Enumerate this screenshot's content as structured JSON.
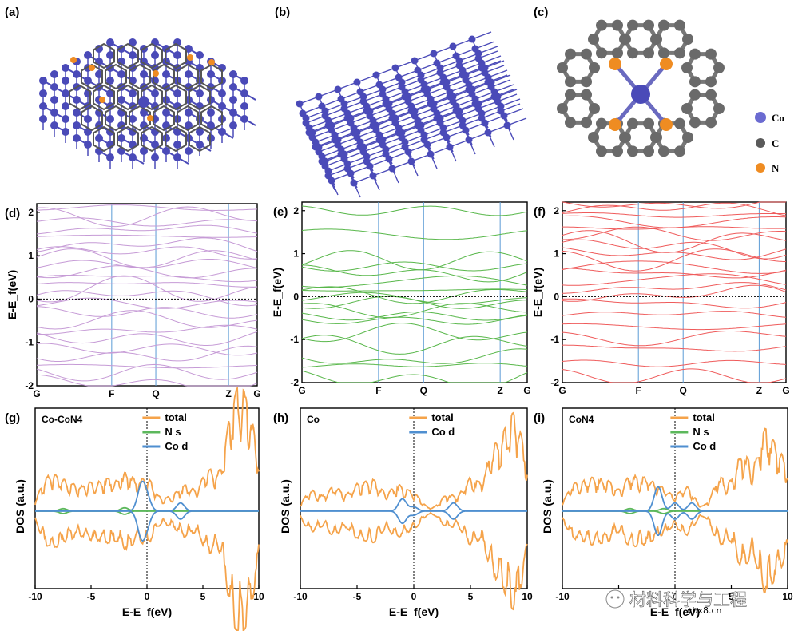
{
  "panels": {
    "a": "(a)",
    "b": "(b)",
    "c": "(c)",
    "d": "(d)",
    "e": "(e)",
    "f": "(f)",
    "g": "(g)",
    "h": "(h)",
    "i": "(i)"
  },
  "structure_legend": [
    {
      "label": "Co",
      "color": "#6b6bd1"
    },
    {
      "label": "C",
      "color": "#5a5a5a"
    },
    {
      "label": "N",
      "color": "#ef8c22"
    }
  ],
  "colors": {
    "co_atom": "#4a4ab8",
    "c_atom": "#6a6a6a",
    "n_atom": "#ef8c22",
    "band_d": "#c69bd6",
    "band_e": "#58b74a",
    "band_f": "#ef5b5b",
    "kpath_line": "#5b9bd5",
    "dos_total": "#f5a34a",
    "dos_ns": "#5cb85c",
    "dos_cod": "#4f8fd0"
  },
  "watermark": {
    "text": "材料科学与工程",
    "sub": "ybx8.cn"
  },
  "chart_data": [
    {
      "id": "d",
      "type": "line",
      "chart": "band structure",
      "xlabel": "",
      "ylabel": "E-E_f(eV)",
      "kpoints": [
        "G",
        "F",
        "Q",
        "Z",
        "G"
      ],
      "kpoint_positions": [
        0,
        0.34,
        0.54,
        0.87,
        1.0
      ],
      "ylim": [
        -2,
        2.2
      ],
      "yticks": [
        -2,
        -1,
        0,
        1,
        2
      ],
      "fermi_level": 0,
      "bands_at_G": [
        -1.95,
        -1.7,
        -1.55,
        -1.3,
        -1.15,
        -0.9,
        -0.72,
        -0.5,
        -0.3,
        -0.1,
        0.08,
        0.2,
        0.35,
        0.5,
        0.62,
        0.8,
        0.95,
        1.1,
        1.25,
        1.45,
        1.6,
        1.78,
        1.92,
        2.1
      ]
    },
    {
      "id": "e",
      "type": "line",
      "chart": "band structure",
      "xlabel": "",
      "ylabel": "E-E_f(eV)",
      "kpoints": [
        "G",
        "F",
        "Q",
        "Z",
        "G"
      ],
      "kpoint_positions": [
        0,
        0.34,
        0.54,
        0.88,
        1.0
      ],
      "ylim": [
        -2,
        2.2
      ],
      "yticks": [
        -2,
        -1,
        0,
        1,
        2
      ],
      "fermi_level": 0,
      "bands_at_G": [
        -1.92,
        -1.6,
        -1.45,
        -1.1,
        -0.85,
        -0.55,
        -0.45,
        -0.3,
        -0.15,
        -0.05,
        0.05,
        0.15,
        0.35,
        0.55,
        0.7,
        0.85,
        1.45,
        2.0
      ]
    },
    {
      "id": "f",
      "type": "line",
      "chart": "band structure",
      "xlabel": "",
      "ylabel": "E-E_f(eV)",
      "kpoints": [
        "G",
        "F",
        "Q",
        "Z",
        "G"
      ],
      "kpoint_positions": [
        0,
        0.34,
        0.54,
        0.88,
        1.0
      ],
      "ylim": [
        -2,
        2.2
      ],
      "yticks": [
        -2,
        -1,
        0,
        1,
        2
      ],
      "fermi_level": 0,
      "bands_at_G": [
        -1.85,
        -1.55,
        -1.2,
        -0.95,
        -0.7,
        -0.4,
        -0.15,
        0.05,
        0.2,
        0.4,
        0.55,
        0.7,
        0.88,
        1.0,
        1.15,
        1.3,
        1.45,
        1.6,
        1.75,
        1.9,
        2.05,
        2.15
      ]
    },
    {
      "id": "g",
      "type": "line",
      "chart": "density of states",
      "tag": "Co-CoN4",
      "xlabel": "E-E_f(eV)",
      "ylabel": "DOS (a.u.)",
      "xlim": [
        -10,
        10
      ],
      "xticks": [
        -10,
        -5,
        0,
        5,
        10
      ],
      "legend": [
        "total",
        "N s",
        "Co d"
      ],
      "legend_position": "top-right",
      "series": [
        {
          "name": "total",
          "peaks": [
            [
              -9,
              0.35
            ],
            [
              -7.8,
              0.3
            ],
            [
              -6.5,
              0.25
            ],
            [
              -5,
              0.3
            ],
            [
              -3.5,
              0.35
            ],
            [
              -1.8,
              0.45
            ],
            [
              0,
              0.4
            ],
            [
              2,
              0.15
            ],
            [
              3.5,
              0.3
            ],
            [
              5.5,
              0.5
            ],
            [
              7.5,
              0.9
            ],
            [
              8.5,
              0.95
            ],
            [
              9.5,
              0.7
            ]
          ]
        },
        {
          "name": "N s",
          "peaks": [
            [
              -7.5,
              0.03
            ],
            [
              -2,
              0.04
            ]
          ]
        },
        {
          "name": "Co d",
          "peaks": [
            [
              -0.5,
              0.3
            ],
            [
              0,
              0.15
            ],
            [
              3,
              0.1
            ]
          ]
        }
      ]
    },
    {
      "id": "h",
      "type": "line",
      "chart": "density of states",
      "tag": "Co",
      "xlabel": "E-E_f(eV)",
      "ylabel": "DOS (a.u.)",
      "xlim": [
        -10,
        10
      ],
      "xticks": [
        -10,
        -5,
        0,
        5,
        10
      ],
      "legend": [
        "total",
        "Co d"
      ],
      "legend_position": "top-right",
      "series": [
        {
          "name": "total",
          "peaks": [
            [
              -9,
              0.25
            ],
            [
              -7,
              0.3
            ],
            [
              -5,
              0.3
            ],
            [
              -3.5,
              0.35
            ],
            [
              -1.5,
              0.3
            ],
            [
              0,
              0.2
            ],
            [
              3,
              0.2
            ],
            [
              5,
              0.4
            ],
            [
              7,
              0.7
            ],
            [
              8.5,
              0.9
            ],
            [
              9.5,
              0.6
            ]
          ]
        },
        {
          "name": "Co d",
          "peaks": [
            [
              -1,
              0.15
            ],
            [
              0,
              0.05
            ],
            [
              3.5,
              0.1
            ]
          ]
        }
      ]
    },
    {
      "id": "i",
      "type": "line",
      "chart": "density of states",
      "tag": "CoN4",
      "xlabel": "E-E_f(eV)",
      "ylabel": "DOS (a.u.)",
      "xlim": [
        -10,
        10
      ],
      "xticks": [
        -10,
        -5,
        0,
        5,
        10
      ],
      "legend": [
        "total",
        "N s",
        "Co d"
      ],
      "legend_position": "top-right",
      "series": [
        {
          "name": "total",
          "peaks": [
            [
              -9,
              0.3
            ],
            [
              -7.5,
              0.35
            ],
            [
              -6,
              0.35
            ],
            [
              -4,
              0.4
            ],
            [
              -2.5,
              0.35
            ],
            [
              -1,
              0.25
            ],
            [
              1,
              0.3
            ],
            [
              4,
              0.4
            ],
            [
              6,
              0.7
            ],
            [
              8,
              0.95
            ],
            [
              9.5,
              0.6
            ]
          ]
        },
        {
          "name": "N s",
          "peaks": [
            [
              -4,
              0.03
            ],
            [
              -1,
              0.03
            ]
          ]
        },
        {
          "name": "Co d",
          "peaks": [
            [
              -1.5,
              0.3
            ],
            [
              0,
              0.1
            ],
            [
              1.5,
              0.1
            ]
          ]
        }
      ]
    }
  ]
}
